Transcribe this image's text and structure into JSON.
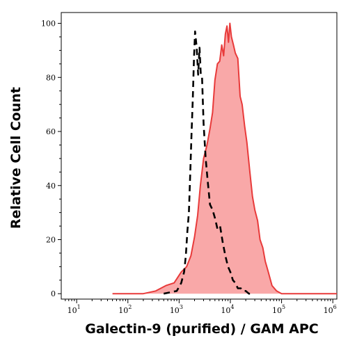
{
  "chart_data": {
    "type": "area",
    "xlabel": "Galectin-9 (purified) / GAM APC",
    "ylabel": "Relative Cell Count",
    "x_scale": "log",
    "xlim": [
      5,
      1200000
    ],
    "ylim": [
      -2,
      104
    ],
    "x_ticks": [
      {
        "base": "10",
        "exp": "1",
        "value": 10
      },
      {
        "base": "10",
        "exp": "2",
        "value": 100
      },
      {
        "base": "10",
        "exp": "3",
        "value": 1000
      },
      {
        "base": "10",
        "exp": "4",
        "value": 10000
      },
      {
        "base": "10",
        "exp": "5",
        "value": 100000
      },
      {
        "base": "10",
        "exp": "6",
        "value": 1000000
      }
    ],
    "y_ticks": [
      0,
      20,
      40,
      60,
      80,
      100
    ],
    "grid": false,
    "legend": "none",
    "series": [
      {
        "style": "filled",
        "color": "#e83a3a",
        "fill": "#f9a8a8",
        "x": [
          50,
          200,
          350,
          550,
          800,
          1100,
          1400,
          1700,
          2000,
          2300,
          2600,
          3000,
          3500,
          4000,
          4500,
          5000,
          5600,
          6200,
          6800,
          7400,
          8000,
          8600,
          9200,
          9800,
          10500,
          11500,
          12500,
          14000,
          15500,
          17000,
          19000,
          21000,
          24000,
          27000,
          30000,
          34000,
          38000,
          43000,
          48000,
          55000,
          65000,
          80000,
          100000,
          1200000
        ],
        "y": [
          0,
          0,
          1,
          3,
          4,
          8,
          10,
          14,
          21,
          29,
          40,
          50,
          55,
          61,
          67,
          79,
          85,
          86,
          92,
          88,
          96,
          99,
          93,
          100,
          95,
          92,
          89,
          87,
          73,
          70,
          62,
          56,
          45,
          36,
          31,
          27,
          20,
          17,
          12,
          8,
          3,
          1,
          0,
          0
        ]
      },
      {
        "style": "dashed",
        "color": "#000000",
        "x": [
          500,
          900,
          1100,
          1250,
          1350,
          1450,
          1550,
          1650,
          1750,
          1850,
          1950,
          2050,
          2200,
          2350,
          2500,
          2650,
          2800,
          3000,
          3300,
          3600,
          4000,
          4500,
          5000,
          5600,
          6300,
          7100,
          8000,
          9000,
          10000,
          11200,
          12500,
          14000,
          16000,
          18000,
          20000,
          23000,
          26000
        ],
        "y": [
          0,
          1,
          4,
          8,
          14,
          23,
          30,
          45,
          60,
          72,
          87,
          97,
          91,
          81,
          91,
          81,
          80,
          63,
          50,
          42,
          33,
          31,
          28,
          24,
          25,
          19,
          14,
          10,
          8,
          5,
          4,
          2,
          2,
          1,
          1,
          0,
          0
        ]
      }
    ]
  }
}
